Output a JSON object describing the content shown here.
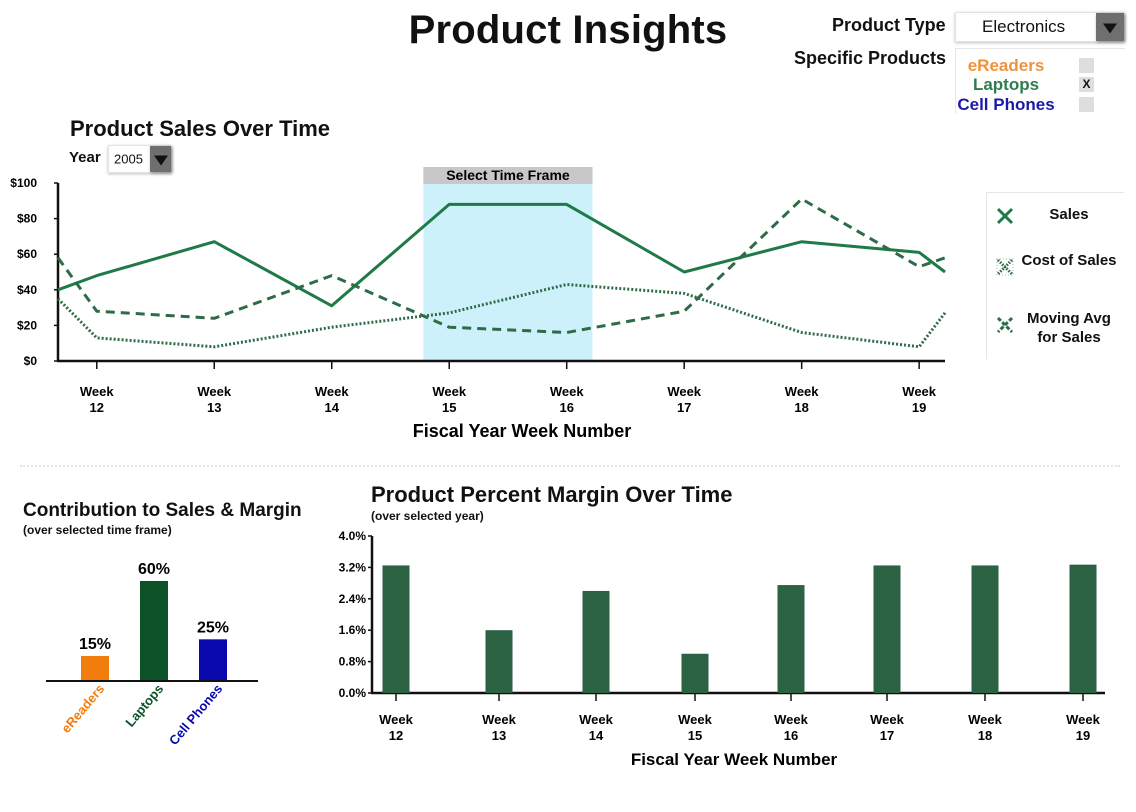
{
  "page": {
    "title": "Product Insights"
  },
  "controls": {
    "product_type_label": "Product Type",
    "product_type_value": "Electronics",
    "specific_products_label": "Specific Products",
    "specific_products": [
      {
        "label": "eReaders",
        "color": "#f0923a",
        "checked": false,
        "mark": ""
      },
      {
        "label": "Laptops",
        "color": "#2e7d4f",
        "checked": true,
        "mark": "X"
      },
      {
        "label": "Cell Phones",
        "color": "#1a1aaa",
        "checked": false,
        "mark": ""
      }
    ]
  },
  "sales_section": {
    "title": "Product Sales Over Time",
    "year_label": "Year",
    "year_value": "2005",
    "time_frame_label": "Select Time Frame"
  },
  "legend": {
    "items": [
      {
        "label": "Sales",
        "icon": "x-solid-icon"
      },
      {
        "label": "Cost of Sales",
        "icon": "x-dotted-icon"
      },
      {
        "label": "Moving Avg for Sales",
        "icon": "x-dashed-icon"
      }
    ]
  },
  "contribution": {
    "title": "Contribution to Sales & Margin",
    "subtitle": "(over selected time frame)"
  },
  "margin_section": {
    "title": "Product Percent Margin Over Time",
    "subtitle": "(over selected year)"
  },
  "chart_data": [
    {
      "type": "line",
      "title": "Product Sales Over Time",
      "xlabel": "Fiscal Year Week Number",
      "ylabel": "",
      "x": [
        12,
        13,
        14,
        15,
        16,
        17,
        18,
        19
      ],
      "categories": [
        "Week 12",
        "Week 13",
        "Week 14",
        "Week 15",
        "Week 16",
        "Week 17",
        "Week 18",
        "Week 19"
      ],
      "xlim": [
        11.67,
        19.22
      ],
      "ylim": [
        0,
        100
      ],
      "yticks": [
        0,
        20,
        40,
        60,
        80,
        100
      ],
      "ytick_labels": [
        "$0",
        "$20",
        "$40",
        "$60",
        "$80",
        "$100"
      ],
      "grid": false,
      "legend": "right",
      "highlight": {
        "from": 14.78,
        "to": 16.22,
        "color": "#cdf1fb",
        "label": "Select Time Frame"
      },
      "series": [
        {
          "name": "Sales",
          "style": "solid",
          "color": "#1e7a46",
          "x": [
            11.67,
            12,
            13,
            14,
            15,
            16,
            17,
            18,
            19,
            19.22
          ],
          "values": [
            40,
            48,
            67,
            31,
            88,
            88,
            50,
            67,
            61,
            50
          ]
        },
        {
          "name": "Cost of Sales",
          "style": "dotted",
          "color": "#2e6b47",
          "x": [
            11.67,
            12,
            13,
            14,
            15,
            16,
            17,
            18,
            19,
            19.22
          ],
          "values": [
            35,
            13,
            8,
            19,
            27,
            43,
            38,
            16,
            8,
            27
          ]
        },
        {
          "name": "Moving Avg for Sales",
          "style": "dashed",
          "color": "#2e6b47",
          "x": [
            11.67,
            12,
            13,
            14,
            15,
            16,
            17,
            18,
            19,
            19.22
          ],
          "values": [
            58,
            28,
            24,
            48,
            19,
            16,
            28,
            91,
            53,
            58
          ]
        }
      ]
    },
    {
      "type": "bar",
      "title": "Contribution to Sales & Margin",
      "subtitle": "(over selected time frame)",
      "categories": [
        "eReaders",
        "Laptops",
        "Cell Phones"
      ],
      "values": [
        15,
        60,
        25
      ],
      "value_labels": [
        "15%",
        "60%",
        "25%"
      ],
      "colors": [
        "#f07d0e",
        "#0b5228",
        "#0808ad"
      ],
      "ylim": [
        0,
        60
      ]
    },
    {
      "type": "bar",
      "title": "Product Percent Margin Over Time",
      "subtitle": "(over selected year)",
      "xlabel": "Fiscal Year Week Number",
      "categories": [
        "Week 12",
        "Week 13",
        "Week 14",
        "Week 15",
        "Week 16",
        "Week 17",
        "Week 18",
        "Week 19"
      ],
      "values": [
        3.25,
        1.6,
        2.6,
        1.0,
        2.75,
        3.25,
        3.25,
        3.27
      ],
      "ylim": [
        0,
        4.0
      ],
      "yticks": [
        0,
        0.8,
        1.6,
        2.4,
        3.2,
        4.0
      ],
      "ytick_labels": [
        "0.0%",
        "0.8%",
        "1.6%",
        "2.4%",
        "3.2%",
        "4.0%"
      ],
      "color": "#2b6244"
    }
  ]
}
